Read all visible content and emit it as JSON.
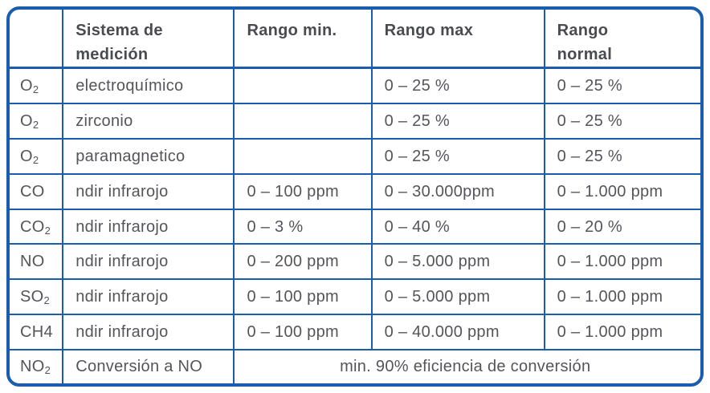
{
  "chart_data": {
    "type": "table",
    "title": "",
    "columns": [
      "",
      "Sistema de medición",
      "Rango min.",
      "Rango max",
      "Rango normal"
    ],
    "header_display": {
      "gas": "",
      "sistema": "Sistema de\nmedición",
      "rango_min": "Rango min.",
      "rango_max": "Rango max",
      "rango_normal": "Rango\nnormal"
    },
    "rows": [
      {
        "gas": "O₂",
        "gas_base": "O",
        "gas_sub": "2",
        "sistema": "electroquímico",
        "rango_min": "",
        "rango_max": "0 – 25 %",
        "rango_normal": "0 – 25 %"
      },
      {
        "gas": "O₂",
        "gas_base": "O",
        "gas_sub": "2",
        "sistema": "zirconio",
        "rango_min": "",
        "rango_max": "0 – 25 %",
        "rango_normal": "0 – 25 %"
      },
      {
        "gas": "O₂",
        "gas_base": "O",
        "gas_sub": "2",
        "sistema": "paramagnetico",
        "rango_min": "",
        "rango_max": "0 – 25 %",
        "rango_normal": "0 – 25 %"
      },
      {
        "gas": "CO",
        "gas_base": "CO",
        "gas_sub": "",
        "sistema": "ndir infrarojo",
        "rango_min": "0 – 100 ppm",
        "rango_max": "0 – 30.000ppm",
        "rango_normal": "0 – 1.000 ppm"
      },
      {
        "gas": "CO₂",
        "gas_base": "CO",
        "gas_sub": "2",
        "sistema": "ndir infrarojo",
        "rango_min": "0 – 3 %",
        "rango_max": "0 – 40 %",
        "rango_normal": "0 – 20 %"
      },
      {
        "gas": "NO",
        "gas_base": "NO",
        "gas_sub": "",
        "sistema": "ndir infrarojo",
        "rango_min": "0 – 200 ppm",
        "rango_max": "0 – 5.000 ppm",
        "rango_normal": "0 – 1.000 ppm"
      },
      {
        "gas": "SO₂",
        "gas_base": "SO",
        "gas_sub": "2",
        "sistema": "ndir infrarojo",
        "rango_min": "0 – 100 ppm",
        "rango_max": "0 – 5.000 ppm",
        "rango_normal": "0 – 1.000 ppm"
      },
      {
        "gas": "CH4",
        "gas_base": "CH4",
        "gas_sub": "",
        "sistema": "ndir infrarojo",
        "rango_min": "0 – 100 ppm",
        "rango_max": "0 – 40.000 ppm",
        "rango_normal": "0 – 1.000 ppm"
      },
      {
        "gas": "NO₂",
        "gas_base": "NO",
        "gas_sub": "2",
        "sistema": "Conversión a NO",
        "note_span": "min. 90% eficiencia de conversión"
      }
    ],
    "layout_hints": {
      "last_row_note_spans_columns": [
        "Rango min.",
        "Rango max",
        "Rango normal"
      ],
      "grid": true
    }
  },
  "colors": {
    "border_blue": "#1A5CAD",
    "text_gray": "#54555A",
    "header_text": "#4A4B50",
    "background": "#FFFFFF"
  }
}
